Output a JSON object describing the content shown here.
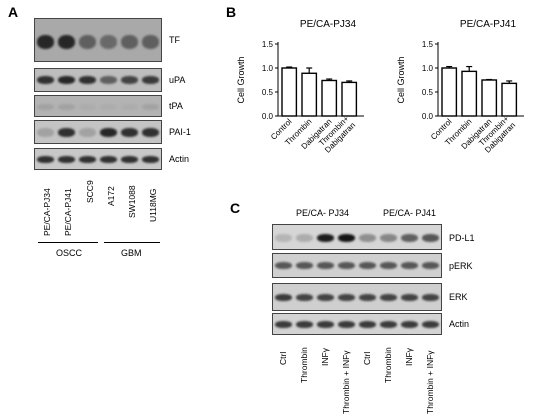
{
  "panel_a": {
    "letter": "A",
    "rows": [
      "TF",
      "uPA",
      "tPA",
      "PAI-1",
      "Actin"
    ],
    "lanes": [
      "PE/CA-PJ34",
      "PE/CA-PJ41",
      "SCC9",
      "A172",
      "SW1088",
      "U118MG"
    ],
    "groups": [
      "OSCC",
      "GBM"
    ]
  },
  "panel_b": {
    "letter": "B",
    "chart_data": [
      {
        "type": "bar",
        "title": "PE/CA-PJ34",
        "categories": [
          "Control",
          "Thrombin",
          "Dabigatran",
          "Thrombin+\nDabigatran"
        ],
        "values": [
          1.0,
          0.89,
          0.74,
          0.7
        ],
        "errors": [
          0.02,
          0.11,
          0.03,
          0.03
        ],
        "ylabel": "Cell Growth",
        "ylim": [
          0,
          1.5
        ],
        "yticks": [
          "0.0",
          "0.5",
          "1.0",
          "1.5"
        ]
      },
      {
        "type": "bar",
        "title": "PE/CA-PJ41",
        "categories": [
          "Control",
          "Thrombin",
          "Dabigatran",
          "Thrombin+\nDabigatran"
        ],
        "values": [
          1.0,
          0.93,
          0.75,
          0.68
        ],
        "errors": [
          0.03,
          0.1,
          0.01,
          0.05
        ],
        "ylabel": "Cell Growth",
        "ylim": [
          0,
          1.5
        ],
        "yticks": [
          "0.0",
          "0.5",
          "1.0",
          "1.5"
        ]
      }
    ]
  },
  "panel_c": {
    "letter": "C",
    "groups": [
      "PE/CA- PJ34",
      "PE/CA- PJ41"
    ],
    "rows": [
      "PD-L1",
      "pERK",
      "ERK",
      "Actin"
    ],
    "lanes": [
      "Ctrl",
      "Thrombin",
      "INFγ",
      "Thrombin + INFγ",
      "Ctrl",
      "Thrombin",
      "INFγ",
      "Thrombin + INFγ"
    ]
  }
}
